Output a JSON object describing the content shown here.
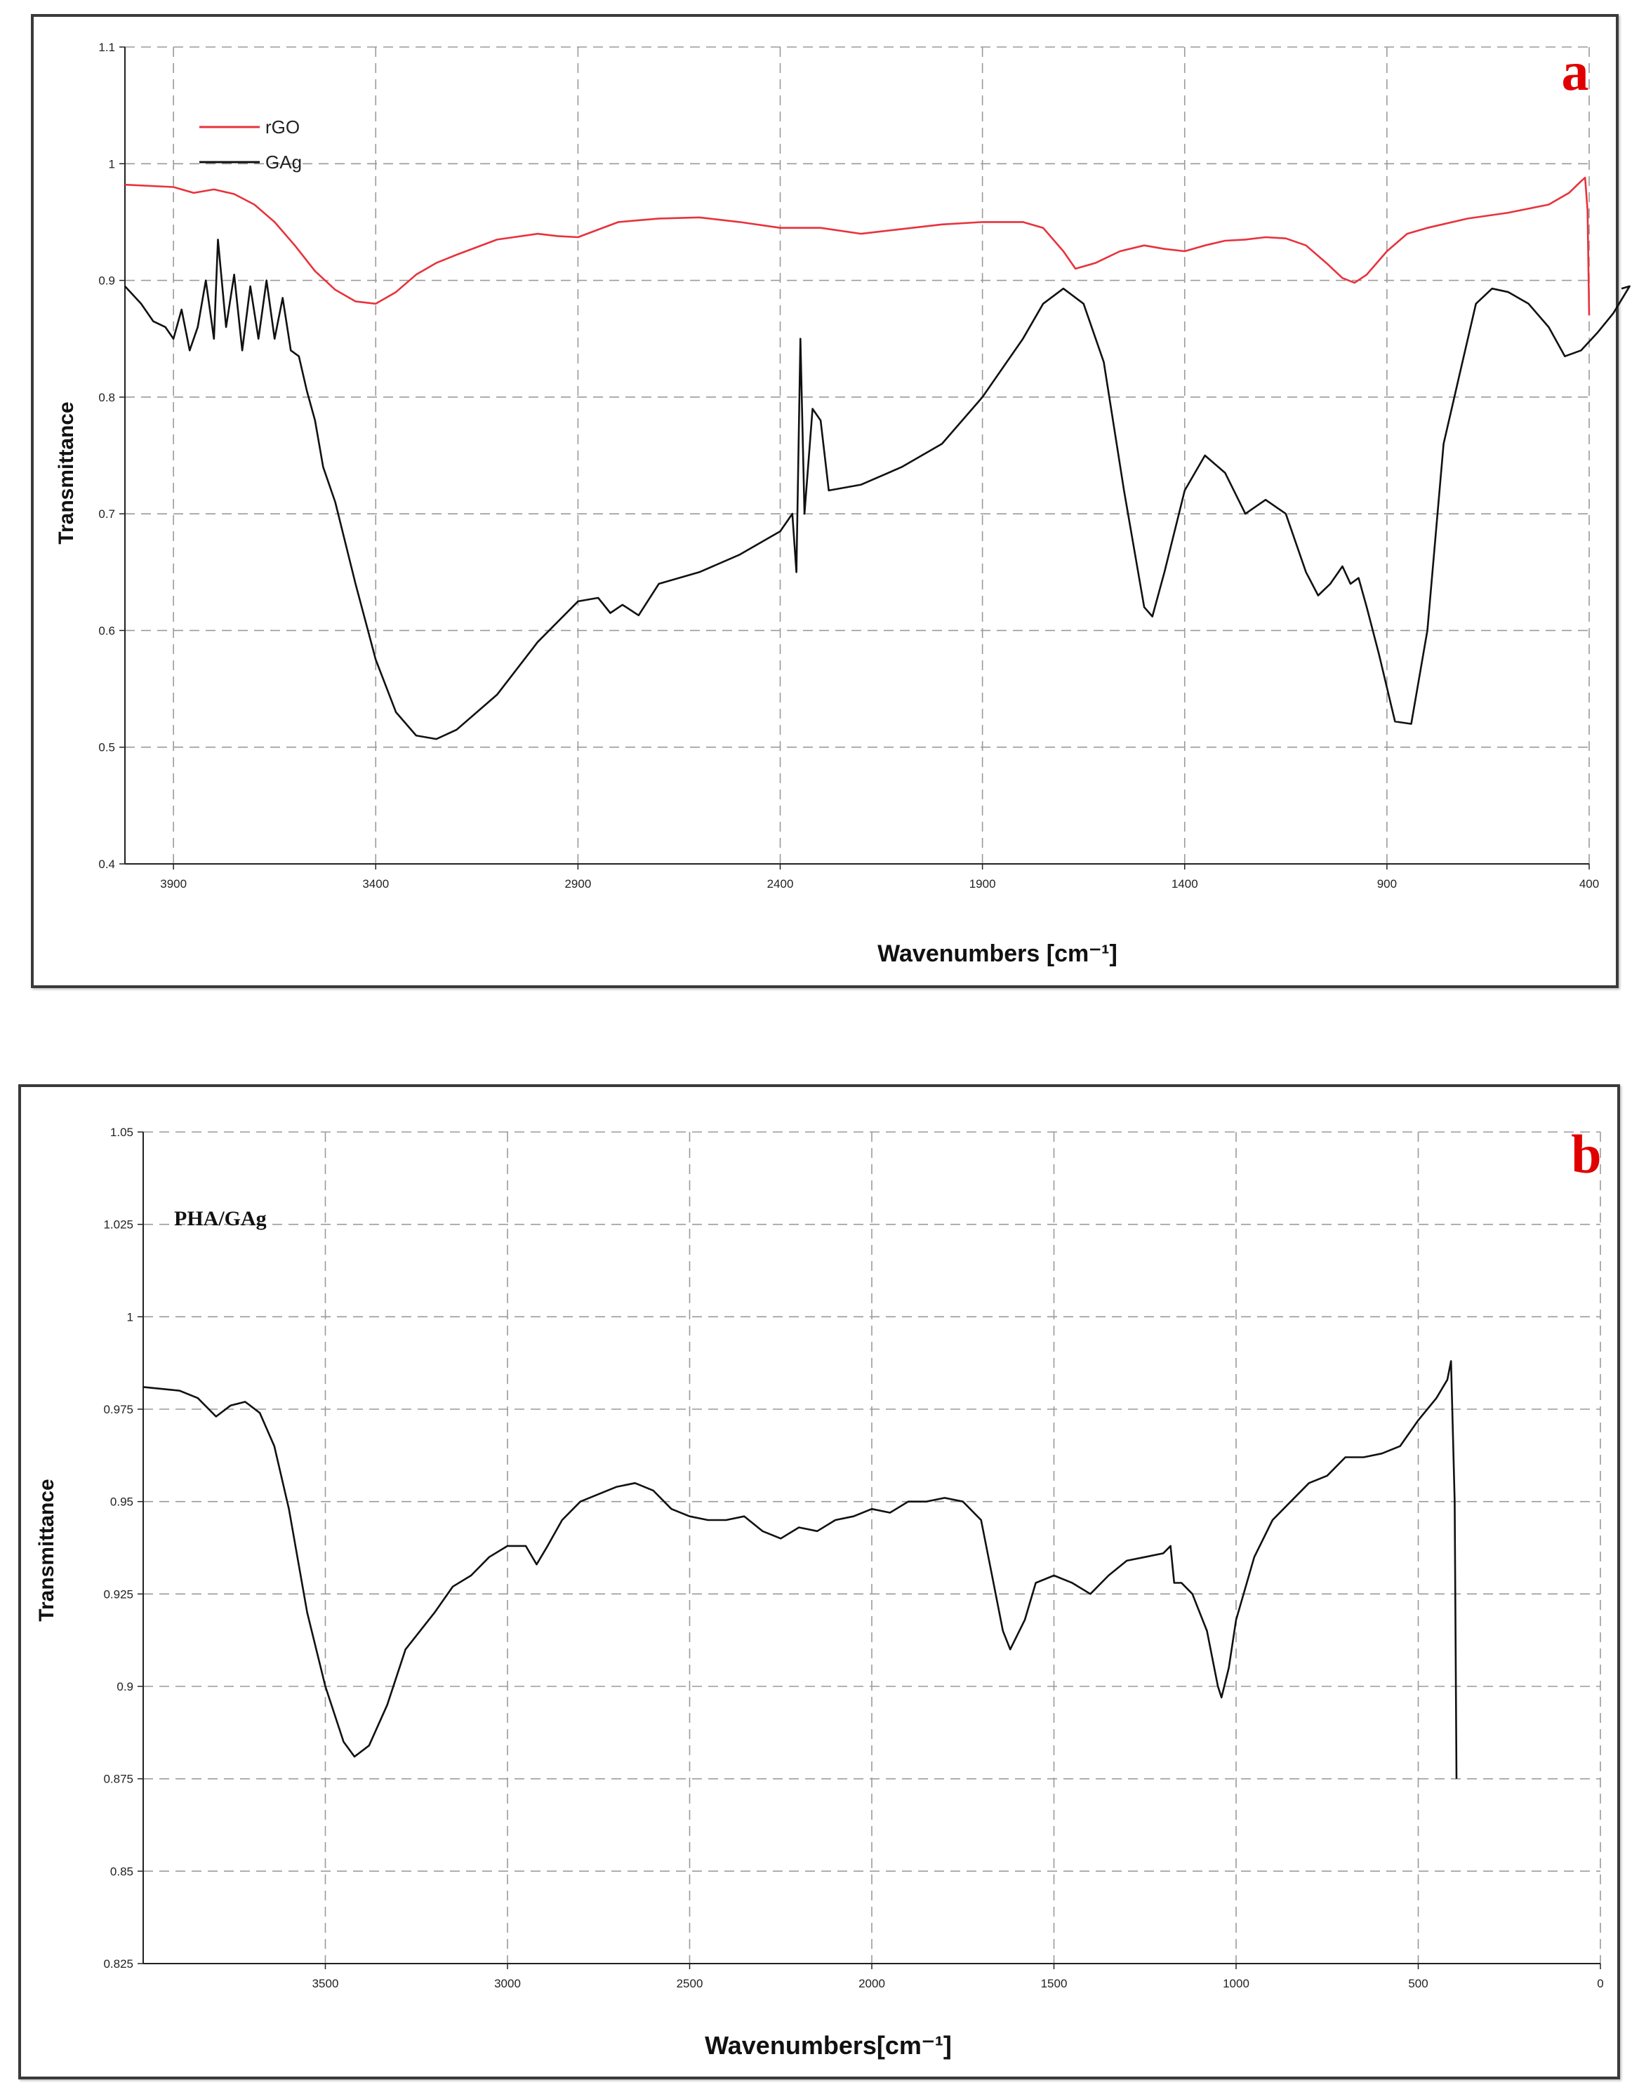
{
  "chart_data": [
    {
      "type": "line",
      "panel_label": "a",
      "xlabel": "Wavenumbers [cm⁻¹]",
      "ylabel": "Transmittance",
      "xlim": [
        4020,
        400
      ],
      "ylim": [
        0.4,
        1.1
      ],
      "x_ticks": [
        3900,
        3400,
        2900,
        2400,
        1900,
        1400,
        900,
        400
      ],
      "y_ticks": [
        0.4,
        0.5,
        0.6,
        0.7,
        0.8,
        0.9,
        1.0,
        1.1
      ],
      "y_tick_labels": [
        "0.4",
        "0.5",
        "0.6",
        "0.7",
        "0.8",
        "0.9",
        "1",
        "1.1"
      ],
      "grid": true,
      "legend_position": "top-left",
      "series": [
        {
          "name": "rGO",
          "color": "#e8323c",
          "points": [
            [
              4020,
              0.982
            ],
            [
              3900,
              0.98
            ],
            [
              3850,
              0.975
            ],
            [
              3800,
              0.978
            ],
            [
              3750,
              0.974
            ],
            [
              3700,
              0.965
            ],
            [
              3650,
              0.95
            ],
            [
              3600,
              0.93
            ],
            [
              3550,
              0.908
            ],
            [
              3500,
              0.892
            ],
            [
              3450,
              0.882
            ],
            [
              3400,
              0.88
            ],
            [
              3350,
              0.89
            ],
            [
              3300,
              0.905
            ],
            [
              3250,
              0.915
            ],
            [
              3200,
              0.922
            ],
            [
              3100,
              0.935
            ],
            [
              3000,
              0.94
            ],
            [
              2950,
              0.938
            ],
            [
              2900,
              0.937
            ],
            [
              2800,
              0.95
            ],
            [
              2700,
              0.953
            ],
            [
              2600,
              0.954
            ],
            [
              2500,
              0.95
            ],
            [
              2400,
              0.945
            ],
            [
              2300,
              0.945
            ],
            [
              2200,
              0.94
            ],
            [
              2100,
              0.944
            ],
            [
              2000,
              0.948
            ],
            [
              1900,
              0.95
            ],
            [
              1800,
              0.95
            ],
            [
              1750,
              0.945
            ],
            [
              1700,
              0.925
            ],
            [
              1670,
              0.91
            ],
            [
              1620,
              0.915
            ],
            [
              1560,
              0.925
            ],
            [
              1500,
              0.93
            ],
            [
              1450,
              0.927
            ],
            [
              1400,
              0.925
            ],
            [
              1350,
              0.93
            ],
            [
              1300,
              0.934
            ],
            [
              1250,
              0.935
            ],
            [
              1200,
              0.937
            ],
            [
              1150,
              0.936
            ],
            [
              1100,
              0.93
            ],
            [
              1050,
              0.915
            ],
            [
              1010,
              0.902
            ],
            [
              980,
              0.898
            ],
            [
              950,
              0.905
            ],
            [
              900,
              0.925
            ],
            [
              850,
              0.94
            ],
            [
              800,
              0.945
            ],
            [
              700,
              0.953
            ],
            [
              600,
              0.958
            ],
            [
              500,
              0.965
            ],
            [
              450,
              0.975
            ],
            [
              420,
              0.985
            ],
            [
              410,
              0.988
            ],
            [
              404,
              0.96
            ],
            [
              400,
              0.87
            ]
          ]
        },
        {
          "name": "GAg",
          "color": "#111111",
          "points": [
            [
              4020,
              0.895
            ],
            [
              3980,
              0.88
            ],
            [
              3950,
              0.865
            ],
            [
              3920,
              0.86
            ],
            [
              3900,
              0.85
            ],
            [
              3880,
              0.875
            ],
            [
              3860,
              0.84
            ],
            [
              3840,
              0.86
            ],
            [
              3820,
              0.9
            ],
            [
              3800,
              0.85
            ],
            [
              3790,
              0.935
            ],
            [
              3770,
              0.86
            ],
            [
              3750,
              0.905
            ],
            [
              3730,
              0.84
            ],
            [
              3710,
              0.895
            ],
            [
              3690,
              0.85
            ],
            [
              3670,
              0.9
            ],
            [
              3650,
              0.85
            ],
            [
              3630,
              0.885
            ],
            [
              3610,
              0.84
            ],
            [
              3590,
              0.835
            ],
            [
              3570,
              0.805
            ],
            [
              3550,
              0.78
            ],
            [
              3530,
              0.74
            ],
            [
              3500,
              0.71
            ],
            [
              3450,
              0.64
            ],
            [
              3400,
              0.575
            ],
            [
              3350,
              0.53
            ],
            [
              3300,
              0.51
            ],
            [
              3250,
              0.507
            ],
            [
              3200,
              0.515
            ],
            [
              3100,
              0.545
            ],
            [
              3000,
              0.59
            ],
            [
              2900,
              0.625
            ],
            [
              2850,
              0.628
            ],
            [
              2820,
              0.615
            ],
            [
              2790,
              0.622
            ],
            [
              2750,
              0.613
            ],
            [
              2700,
              0.64
            ],
            [
              2600,
              0.65
            ],
            [
              2500,
              0.665
            ],
            [
              2400,
              0.685
            ],
            [
              2370,
              0.7
            ],
            [
              2360,
              0.65
            ],
            [
              2350,
              0.85
            ],
            [
              2340,
              0.7
            ],
            [
              2320,
              0.79
            ],
            [
              2300,
              0.78
            ],
            [
              2280,
              0.72
            ],
            [
              2200,
              0.725
            ],
            [
              2100,
              0.74
            ],
            [
              2000,
              0.76
            ],
            [
              1900,
              0.8
            ],
            [
              1800,
              0.85
            ],
            [
              1750,
              0.88
            ],
            [
              1700,
              0.893
            ],
            [
              1650,
              0.88
            ],
            [
              1600,
              0.83
            ],
            [
              1550,
              0.72
            ],
            [
              1500,
              0.62
            ],
            [
              1480,
              0.612
            ],
            [
              1450,
              0.65
            ],
            [
              1400,
              0.72
            ],
            [
              1350,
              0.75
            ],
            [
              1300,
              0.735
            ],
            [
              1250,
              0.7
            ],
            [
              1200,
              0.712
            ],
            [
              1150,
              0.7
            ],
            [
              1100,
              0.65
            ],
            [
              1070,
              0.63
            ],
            [
              1040,
              0.64
            ],
            [
              1010,
              0.655
            ],
            [
              990,
              0.64
            ],
            [
              970,
              0.645
            ],
            [
              950,
              0.62
            ],
            [
              920,
              0.58
            ],
            [
              880,
              0.522
            ],
            [
              840,
              0.52
            ],
            [
              800,
              0.6
            ],
            [
              760,
              0.76
            ],
            [
              720,
              0.82
            ],
            [
              680,
              0.88
            ],
            [
              640,
              0.893
            ],
            [
              600,
              0.89
            ],
            [
              550,
              0.88
            ],
            [
              500,
              0.86
            ],
            [
              460,
              0.835
            ],
            [
              420,
              0.84
            ],
            [
              380,
              0.855
            ],
            [
              340,
              0.872
            ],
            [
              300,
              0.895
            ],
            [
              320,
              0.893
            ]
          ]
        }
      ]
    },
    {
      "type": "line",
      "panel_label": "b",
      "xlabel": "Wavenumbers[cm⁻¹]",
      "ylabel": "Transmittance",
      "xlim": [
        4000,
        0
      ],
      "ylim": [
        0.825,
        1.05
      ],
      "x_ticks": [
        3500,
        3000,
        2500,
        2000,
        1500,
        1000,
        500,
        0
      ],
      "y_ticks": [
        0.825,
        0.85,
        0.875,
        0.9,
        0.925,
        0.95,
        0.975,
        1.0,
        1.025,
        1.05
      ],
      "y_tick_labels": [
        "0.825",
        "0.85",
        "0.875",
        "0.9",
        "0.925",
        "0.95",
        "0.975",
        "1",
        "1.025",
        "1.05"
      ],
      "grid": true,
      "series": [
        {
          "name": "PHA/GAg",
          "color": "#111111",
          "points": [
            [
              4000,
              0.981
            ],
            [
              3900,
              0.98
            ],
            [
              3850,
              0.978
            ],
            [
              3800,
              0.973
            ],
            [
              3760,
              0.976
            ],
            [
              3720,
              0.977
            ],
            [
              3680,
              0.974
            ],
            [
              3640,
              0.965
            ],
            [
              3600,
              0.948
            ],
            [
              3550,
              0.92
            ],
            [
              3500,
              0.9
            ],
            [
              3450,
              0.885
            ],
            [
              3420,
              0.881
            ],
            [
              3380,
              0.884
            ],
            [
              3330,
              0.895
            ],
            [
              3280,
              0.91
            ],
            [
              3200,
              0.92
            ],
            [
              3150,
              0.927
            ],
            [
              3100,
              0.93
            ],
            [
              3050,
              0.935
            ],
            [
              3000,
              0.938
            ],
            [
              2950,
              0.938
            ],
            [
              2920,
              0.933
            ],
            [
              2890,
              0.938
            ],
            [
              2850,
              0.945
            ],
            [
              2800,
              0.95
            ],
            [
              2750,
              0.952
            ],
            [
              2700,
              0.954
            ],
            [
              2650,
              0.955
            ],
            [
              2600,
              0.953
            ],
            [
              2550,
              0.948
            ],
            [
              2500,
              0.946
            ],
            [
              2450,
              0.945
            ],
            [
              2400,
              0.945
            ],
            [
              2350,
              0.946
            ],
            [
              2300,
              0.942
            ],
            [
              2250,
              0.94
            ],
            [
              2200,
              0.943
            ],
            [
              2150,
              0.942
            ],
            [
              2100,
              0.945
            ],
            [
              2050,
              0.946
            ],
            [
              2000,
              0.948
            ],
            [
              1950,
              0.947
            ],
            [
              1900,
              0.95
            ],
            [
              1850,
              0.95
            ],
            [
              1800,
              0.951
            ],
            [
              1750,
              0.95
            ],
            [
              1700,
              0.945
            ],
            [
              1670,
              0.93
            ],
            [
              1640,
              0.915
            ],
            [
              1620,
              0.91
            ],
            [
              1580,
              0.918
            ],
            [
              1550,
              0.928
            ],
            [
              1500,
              0.93
            ],
            [
              1450,
              0.928
            ],
            [
              1400,
              0.925
            ],
            [
              1350,
              0.93
            ],
            [
              1300,
              0.934
            ],
            [
              1250,
              0.935
            ],
            [
              1200,
              0.936
            ],
            [
              1180,
              0.938
            ],
            [
              1170,
              0.928
            ],
            [
              1150,
              0.928
            ],
            [
              1120,
              0.925
            ],
            [
              1100,
              0.92
            ],
            [
              1080,
              0.915
            ],
            [
              1060,
              0.905
            ],
            [
              1050,
              0.9
            ],
            [
              1040,
              0.897
            ],
            [
              1020,
              0.905
            ],
            [
              1000,
              0.918
            ],
            [
              950,
              0.935
            ],
            [
              900,
              0.945
            ],
            [
              850,
              0.95
            ],
            [
              800,
              0.955
            ],
            [
              750,
              0.957
            ],
            [
              700,
              0.962
            ],
            [
              650,
              0.962
            ],
            [
              600,
              0.963
            ],
            [
              550,
              0.965
            ],
            [
              500,
              0.972
            ],
            [
              450,
              0.978
            ],
            [
              420,
              0.983
            ],
            [
              410,
              0.988
            ],
            [
              400,
              0.95
            ],
            [
              395,
              0.875
            ]
          ]
        }
      ]
    }
  ]
}
